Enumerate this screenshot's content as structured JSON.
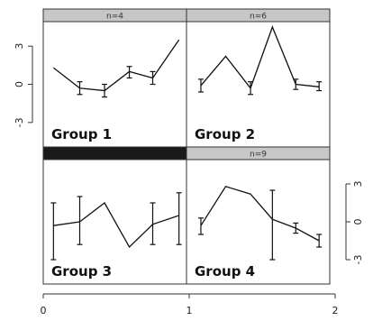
{
  "chart_data": {
    "type": "line",
    "layout": "2x2 conditioning panels",
    "x_axis": {
      "range": [
        0,
        2
      ],
      "ticks": [
        "0",
        "1",
        "2"
      ]
    },
    "y_axis": {
      "range": [
        -3,
        3
      ],
      "ticks": [
        "-3",
        "0",
        "3"
      ]
    },
    "strip_color": "#c7c7c7",
    "dark_strip_color": "#1a1a1a",
    "panels": [
      {
        "label": "Group 1",
        "strip_text": "n=4",
        "strip_dark": false,
        "x_offset": 0,
        "x": [
          0.07,
          0.25,
          0.42,
          0.59,
          0.75,
          0.93
        ],
        "y": [
          1.3,
          -0.3,
          -0.5,
          1.0,
          0.5,
          3.5
        ],
        "err_low": [
          null,
          -0.8,
          -1.0,
          0.5,
          0.0,
          null
        ],
        "err_high": [
          null,
          0.2,
          0.0,
          1.4,
          1.0,
          null
        ]
      },
      {
        "label": "Group 2",
        "strip_text": "n=6",
        "strip_dark": false,
        "x_offset": 1,
        "x": [
          1.08,
          1.25,
          1.42,
          1.57,
          1.73,
          1.89
        ],
        "y": [
          -0.1,
          2.2,
          -0.3,
          4.5,
          0.0,
          -0.2
        ],
        "err_low": [
          -0.6,
          null,
          -0.8,
          null,
          -0.4,
          -0.5
        ],
        "err_high": [
          0.4,
          null,
          0.2,
          null,
          0.4,
          0.2
        ]
      },
      {
        "label": "Group 3",
        "strip_text": "",
        "strip_dark": true,
        "x_offset": 0,
        "x": [
          0.07,
          0.25,
          0.42,
          0.59,
          0.75,
          0.93
        ],
        "y": [
          -0.3,
          0.0,
          1.5,
          -2.0,
          -0.2,
          0.5
        ],
        "err_low": [
          -3.0,
          -1.8,
          null,
          null,
          -1.8,
          -1.8
        ],
        "err_high": [
          1.5,
          2.0,
          null,
          null,
          1.5,
          2.3
        ]
      },
      {
        "label": "Group 4",
        "strip_text": "n=9",
        "strip_dark": false,
        "x_offset": 1,
        "x": [
          1.08,
          1.25,
          1.42,
          1.57,
          1.73,
          1.89
        ],
        "y": [
          -0.3,
          2.8,
          2.2,
          0.2,
          -0.5,
          -1.5
        ],
        "err_low": [
          -1.0,
          null,
          null,
          -3.0,
          -0.9,
          -2.0
        ],
        "err_high": [
          0.3,
          null,
          null,
          2.5,
          -0.1,
          -1.0
        ]
      }
    ],
    "left_axis_ticks": [
      "3",
      "0",
      "-3"
    ],
    "right_axis_ticks": [
      "3",
      "0",
      "-3"
    ],
    "bottom_axis_ticks": [
      "0",
      "1",
      "2"
    ]
  }
}
